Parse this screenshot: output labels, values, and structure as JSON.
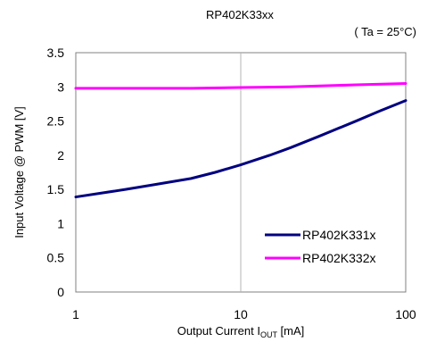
{
  "chart_data": {
    "type": "line",
    "title": "RP402K33xx",
    "condition": "( Ta = 25°C)",
    "xlabel_main": "Output Current I",
    "xlabel_sub": "OUT",
    "xlabel_unit": " [mA]",
    "ylabel": "Input Voltage @ PWM [V]",
    "x_scale": "log",
    "xlim": [
      1,
      100
    ],
    "ylim": [
      0,
      3.5
    ],
    "x_ticks": [
      1,
      10,
      100
    ],
    "x_tick_labels": [
      "1",
      "10",
      "100"
    ],
    "y_ticks": [
      0,
      0.5,
      1,
      1.5,
      2,
      2.5,
      3,
      3.5
    ],
    "y_tick_labels": [
      "0",
      "0.5",
      "1",
      "1.5",
      "2",
      "2.5",
      "3",
      "3.5"
    ],
    "grid": "vertical gridline at x = 10",
    "legend_position": "bottom-right",
    "series": [
      {
        "name": "RP402K331x",
        "color": "#000080",
        "x": [
          1,
          2,
          3,
          5,
          7,
          10,
          15,
          20,
          30,
          50,
          70,
          100
        ],
        "y": [
          1.39,
          1.5,
          1.57,
          1.66,
          1.75,
          1.86,
          2.0,
          2.11,
          2.28,
          2.5,
          2.65,
          2.8
        ]
      },
      {
        "name": "RP402K332x",
        "color": "#ff00ff",
        "x": [
          1,
          2,
          5,
          10,
          20,
          50,
          100
        ],
        "y": [
          2.98,
          2.98,
          2.98,
          2.99,
          3.0,
          3.03,
          3.05
        ]
      }
    ]
  }
}
